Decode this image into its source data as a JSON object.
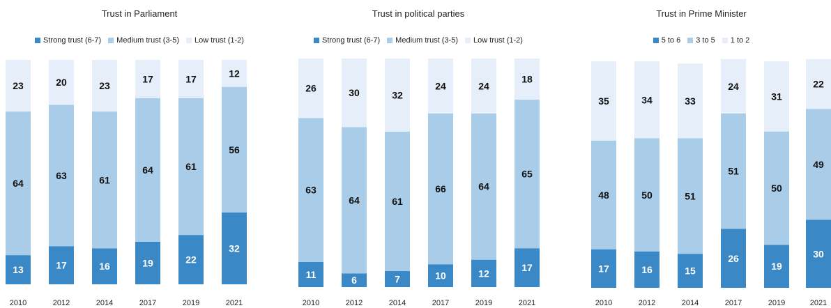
{
  "colors": {
    "strong": "#3a88c5",
    "medium": "#a9cce8",
    "low": "#e6eff9"
  },
  "chart_data": [
    {
      "type": "bar",
      "stacked": true,
      "title": "Trust in Parliament",
      "categories": [
        "2010",
        "2012",
        "2014",
        "2017",
        "2019",
        "2021"
      ],
      "series": [
        {
          "name": "Strong trust (6-7)",
          "values": [
            13,
            17,
            16,
            19,
            22,
            32
          ]
        },
        {
          "name": "Medium trust (3-5)",
          "values": [
            64,
            63,
            61,
            64,
            61,
            56
          ]
        },
        {
          "name": "Low trust (1-2)",
          "values": [
            23,
            20,
            23,
            17,
            17,
            12
          ]
        }
      ],
      "legend_position": "top"
    },
    {
      "type": "bar",
      "stacked": true,
      "title": "Trust in political parties",
      "categories": [
        "2010",
        "2012",
        "2014",
        "2017",
        "2019",
        "2021"
      ],
      "series": [
        {
          "name": "Strong trust (6-7)",
          "values": [
            11,
            6,
            7,
            10,
            12,
            17
          ]
        },
        {
          "name": "Medium trust (3-5)",
          "values": [
            63,
            64,
            61,
            66,
            64,
            65
          ]
        },
        {
          "name": "Low trust (1-2)",
          "values": [
            26,
            30,
            32,
            24,
            24,
            18
          ]
        }
      ],
      "legend_position": "top"
    },
    {
      "type": "bar",
      "stacked": true,
      "title": "Trust in Prime Minister",
      "categories": [
        "2010",
        "2012",
        "2014",
        "2017",
        "2019",
        "2021"
      ],
      "series": [
        {
          "name": "5 to 6",
          "values": [
            17,
            16,
            15,
            26,
            19,
            30
          ]
        },
        {
          "name": "3 to 5",
          "values": [
            48,
            50,
            51,
            51,
            50,
            49
          ]
        },
        {
          "name": "1 to 2",
          "values": [
            35,
            34,
            33,
            24,
            31,
            22
          ]
        }
      ],
      "legend_position": "top"
    }
  ]
}
